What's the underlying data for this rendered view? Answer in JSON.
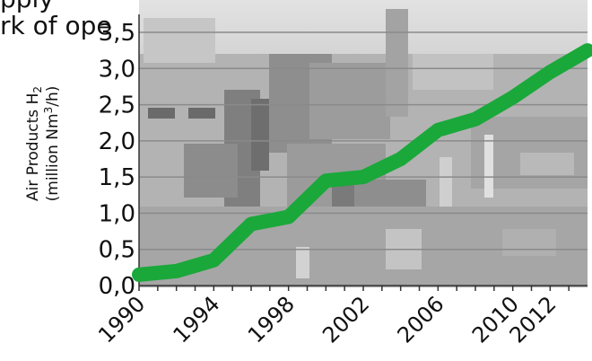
{
  "overlay_text": [
    "pply",
    "rk of ope"
  ],
  "colors": {
    "line": "#1aa83a",
    "grid": "#8a8a8a",
    "axis": "#333333",
    "text": "#111111",
    "photo_sky": "#d8d8d8",
    "photo_ground": "#a9a9a9"
  },
  "chart_data": {
    "type": "line",
    "title": "",
    "xlabel": "",
    "ylabel": "Air Products H2 (million Nm3/h)",
    "ylabel_line1": "Air Products H",
    "ylabel_line1_sub": "2",
    "ylabel_line2_prefix": "(million Nm",
    "ylabel_line2_sup": "3",
    "ylabel_line2_suffix": "/h)",
    "xlim": [
      1990,
      2014
    ],
    "ylim": [
      0.0,
      3.5
    ],
    "y_ticks": [
      0.0,
      0.5,
      1.0,
      1.5,
      2.0,
      2.5,
      3.0,
      3.5
    ],
    "y_tick_labels": [
      "0,0",
      "0,5",
      "1,0",
      "1,5",
      "2,0",
      "2,5",
      "3,0",
      "3,5"
    ],
    "x_tick_labels": [
      "1990",
      "1994",
      "1998",
      "2002",
      "2006",
      "2010",
      "2012"
    ],
    "x_tick_label_positions": [
      1990,
      1994,
      1998,
      2002,
      2006,
      2010,
      2012
    ],
    "x_minor_ticks": [
      1990,
      1991,
      1992,
      1993,
      1994,
      1995,
      1996,
      1997,
      1998,
      1999,
      2000,
      2001,
      2002,
      2003,
      2004,
      2005,
      2006,
      2007,
      2008,
      2009,
      2010,
      2011,
      2012,
      2013
    ],
    "grid": true,
    "legend": "none",
    "background": "photograph of an industrial hydrogen plant",
    "series": [
      {
        "x": [
          1990,
          1992,
          1994,
          1996,
          1998,
          2000,
          2002,
          2004,
          2006,
          2008,
          2010,
          2012,
          2014
        ],
        "values": [
          0.15,
          0.2,
          0.35,
          0.85,
          0.95,
          1.45,
          1.5,
          1.75,
          2.15,
          2.3,
          2.6,
          2.95,
          3.25
        ]
      }
    ]
  }
}
